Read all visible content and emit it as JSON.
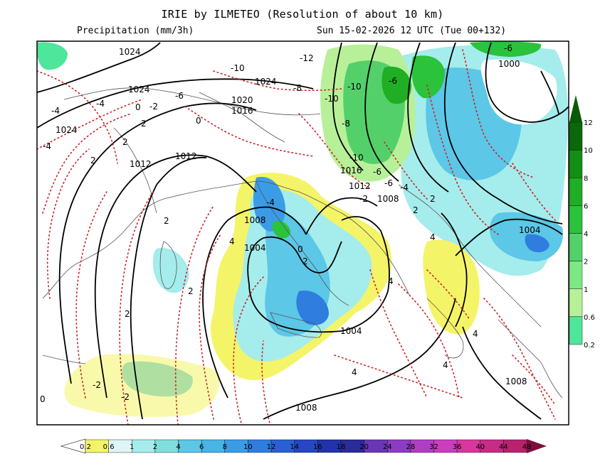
{
  "header": {
    "title": "IRIE by ILMETEO (Resolution of about 10 km)",
    "variable": "Precipitation (mm/3h)",
    "datetime": "Sun 15-02-2026 12 UTC (Tue 00+132)"
  },
  "colors": {
    "precip_scale": [
      "#ffffff",
      "#f4f468",
      "#dff6f6",
      "#a5ecec",
      "#7fdede",
      "#5cc7e6",
      "#49b4e6",
      "#3b9ce6",
      "#2f7ddf",
      "#2b5fd4",
      "#2646c4",
      "#2233aa",
      "#2b2b9a",
      "#6a36b6",
      "#8c3cc2",
      "#b03ec4",
      "#cc3cbf",
      "#d9369e",
      "#c72c86",
      "#b8226e",
      "#a01a5a",
      "#7e0e3e"
    ],
    "pressure_scale": [
      "#eaf7ea",
      "#aef0c0",
      "#4ee69a",
      "#b8f09a",
      "#7ee884",
      "#54d06a",
      "#2bc23c",
      "#1fae24",
      "#138f15",
      "#0a6a0a"
    ],
    "isobar": "#000000",
    "temperature": "#cc2222"
  },
  "map": {
    "isobar_labels": [
      "1024",
      "1024",
      "1024",
      "1024",
      "1020",
      "1016",
      "1016",
      "1012",
      "1012",
      "1012",
      "1008",
      "1008",
      "1008",
      "1008",
      "1004",
      "1004",
      "1004",
      "1000"
    ],
    "isotherm_labels": [
      "-12",
      "-10",
      "-10",
      "-10",
      "-10",
      "-8",
      "-8",
      "-6",
      "-6",
      "-6",
      "-6",
      "-6",
      "-4",
      "-4",
      "-4",
      "-4",
      "-4",
      "-2",
      "-2",
      "-2",
      "-2",
      "0",
      "0",
      "0",
      "0",
      "2",
      "2",
      "2",
      "2",
      "2",
      "2",
      "2",
      "2",
      "2",
      "4",
      "4",
      "4",
      "4",
      "4",
      "4"
    ]
  },
  "legend_bottom": {
    "ticks": [
      "0.2",
      "0.6",
      "1",
      "2",
      "4",
      "6",
      "8",
      "10",
      "12",
      "14",
      "16",
      "18",
      "20",
      "24",
      "28",
      "32",
      "36",
      "40",
      "44",
      "48"
    ]
  },
  "legend_right": {
    "ticks": [
      "12",
      "10",
      "8",
      "6",
      "4",
      "2",
      "1",
      "0.6",
      "0.2"
    ]
  }
}
